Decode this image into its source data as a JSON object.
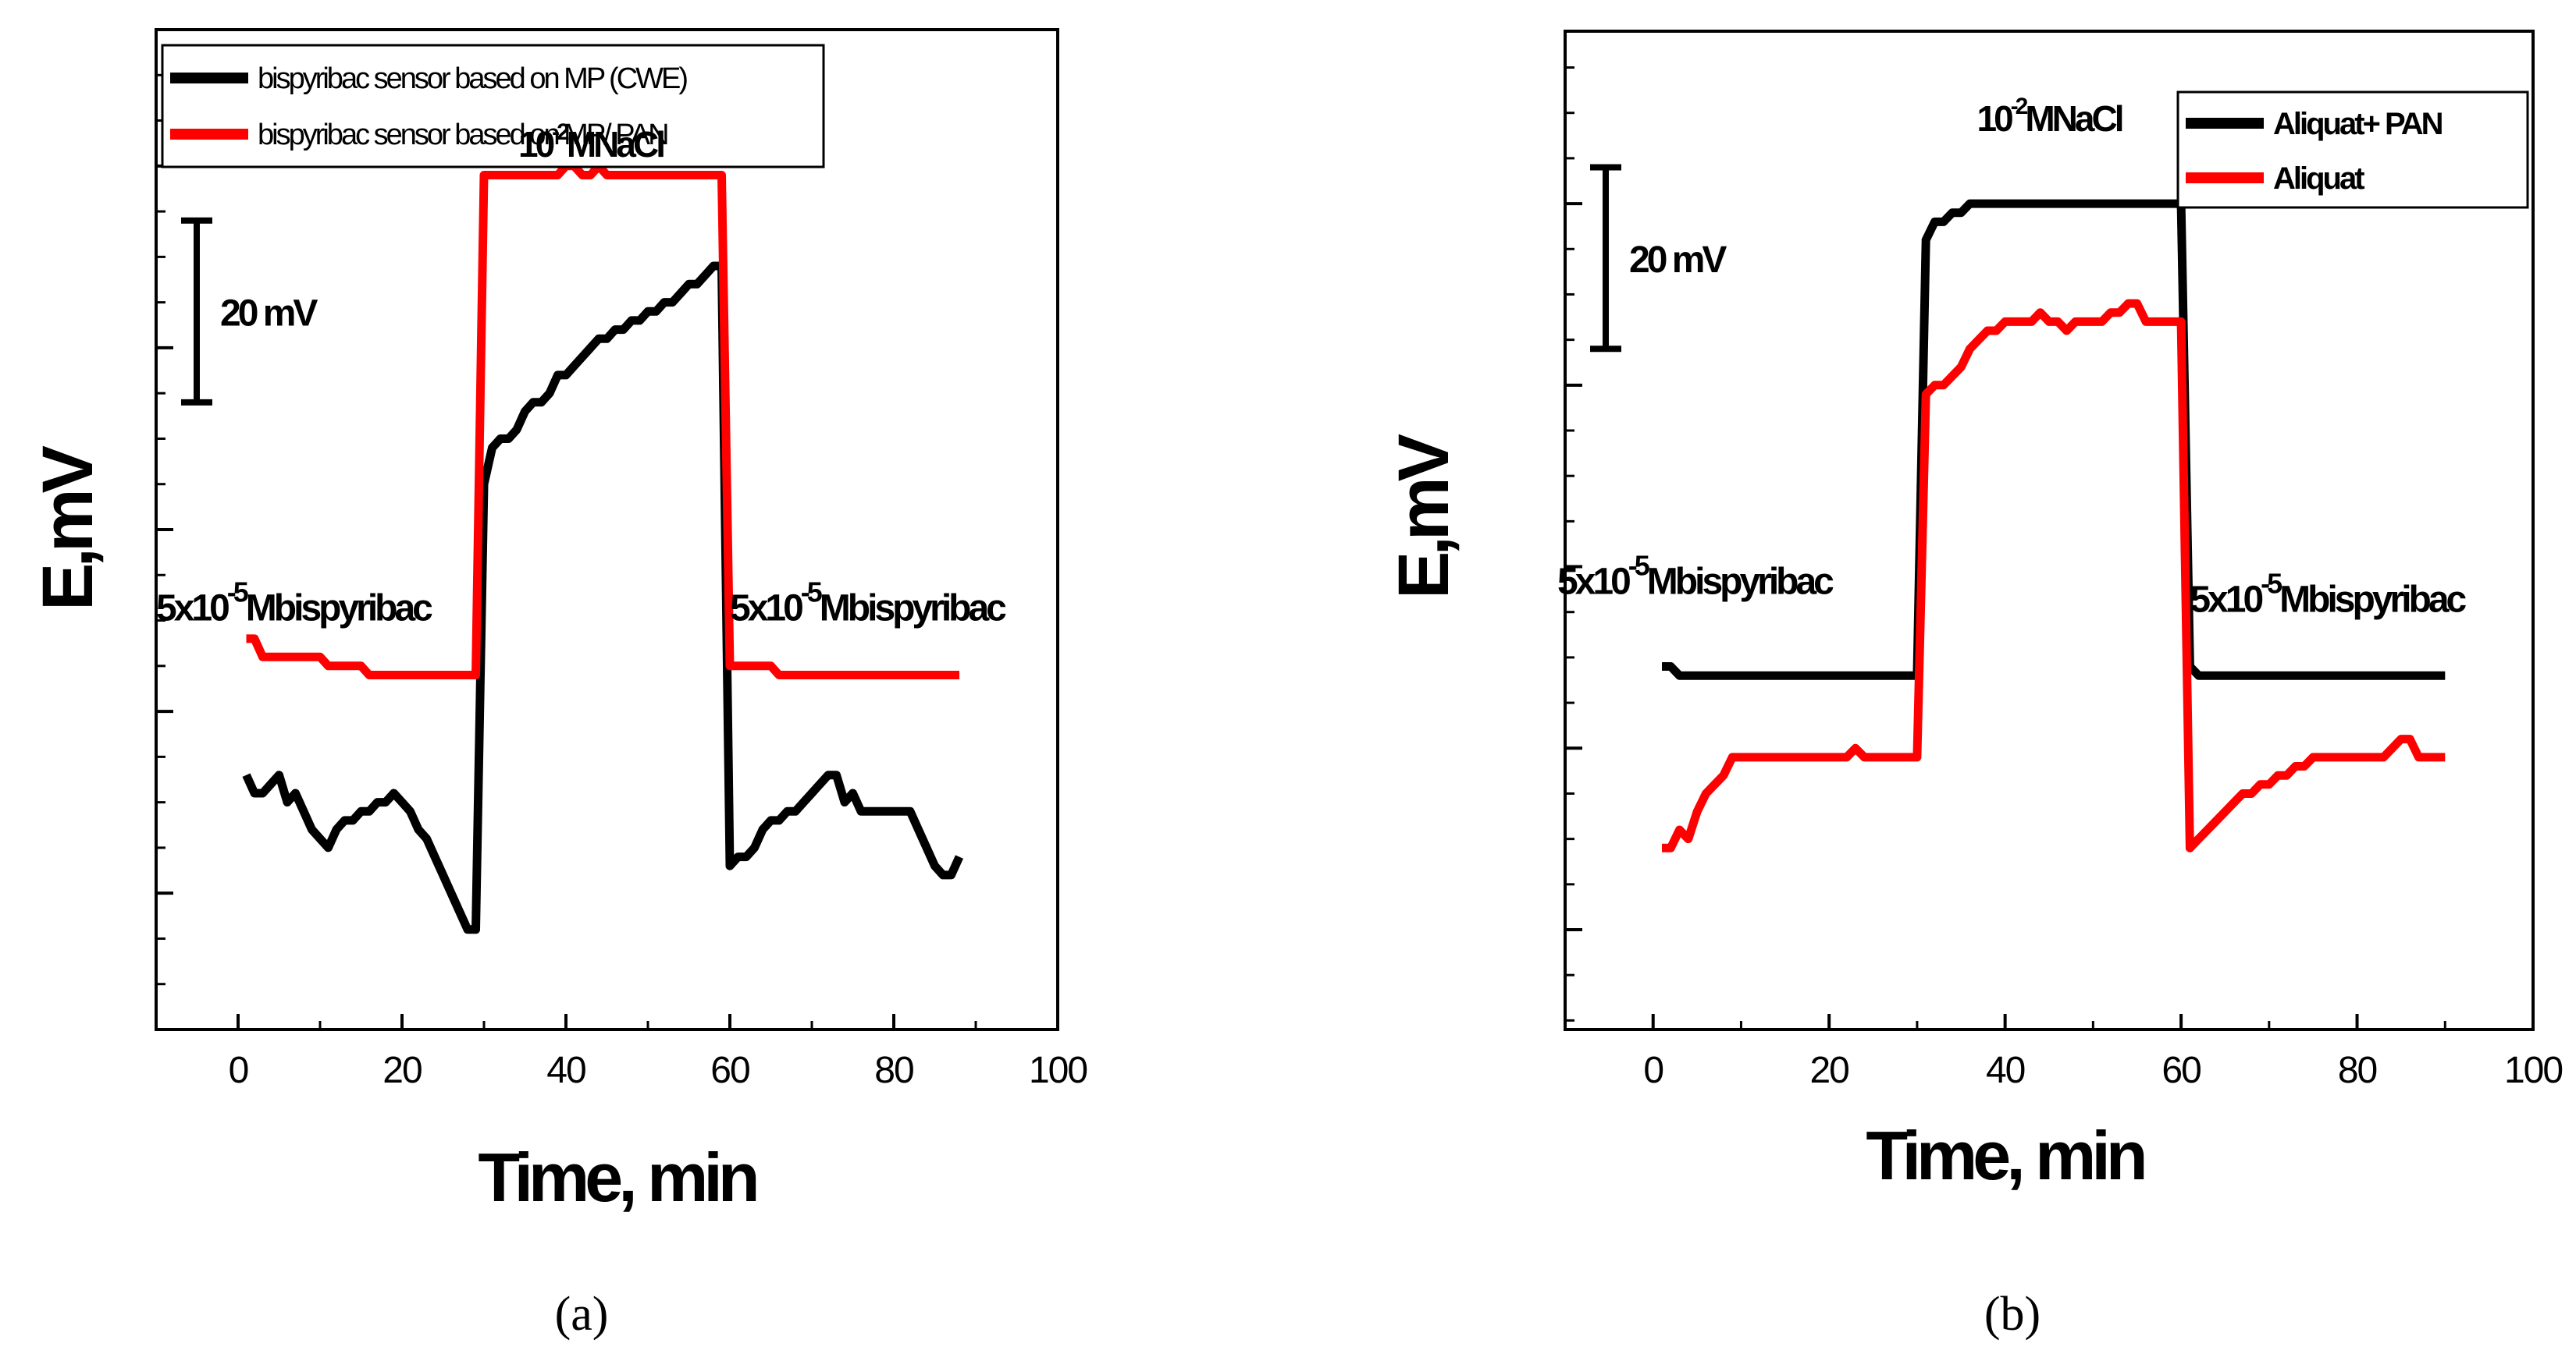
{
  "chart_data": [
    {
      "id": "a",
      "type": "line",
      "panel_label": "(a)",
      "xlabel": "Time, min",
      "ylabel": "E,mV",
      "xlim": [
        -10,
        100
      ],
      "xticks": [
        0,
        20,
        40,
        60,
        80,
        100
      ],
      "y_ticklabels_shown": false,
      "ylim": [
        -15,
        95
      ],
      "legend_position": "top-left",
      "scale_bar": {
        "label": "20 mV",
        "from": 54,
        "to": 74
      },
      "annotations": [
        {
          "id": "nacl",
          "base": "10",
          "sup": "-2",
          "tail": "MNaCl",
          "x": 43,
          "y": 81
        },
        {
          "id": "left",
          "base": "5x10",
          "sup": "-5",
          "tail": "Mbispyribac",
          "x": -10,
          "y": 30
        },
        {
          "id": "right",
          "base": "5x10",
          "sup": "-5",
          "tail": "Mbispyribac",
          "x": 60,
          "y": 30
        }
      ],
      "series": [
        {
          "name": "bispyribac sensor based on MP (CWE)",
          "color": "#000000",
          "x": [
            1,
            2,
            3,
            4,
            5,
            6,
            7,
            8,
            9,
            10,
            11,
            12,
            13,
            14,
            15,
            16,
            17,
            18,
            19,
            20,
            21,
            22,
            23,
            24,
            25,
            26,
            27,
            28,
            29,
            30,
            31,
            32,
            33,
            34,
            35,
            36,
            37,
            38,
            39,
            40,
            41,
            42,
            43,
            44,
            45,
            46,
            47,
            48,
            49,
            50,
            51,
            52,
            53,
            54,
            55,
            56,
            57,
            58,
            59,
            60,
            61,
            62,
            63,
            64,
            65,
            66,
            67,
            68,
            69,
            70,
            71,
            72,
            73,
            74,
            75,
            76,
            77,
            78,
            79,
            80,
            81,
            82,
            83,
            84,
            85,
            86,
            87,
            88
          ],
          "y": [
            13,
            11,
            11,
            12,
            13,
            10,
            11,
            9,
            7,
            6,
            5,
            7,
            8,
            8,
            9,
            9,
            10,
            10,
            11,
            10,
            9,
            7,
            6,
            4,
            2,
            0,
            -2,
            -4,
            -4,
            45,
            49,
            50,
            50,
            51,
            53,
            54,
            54,
            55,
            57,
            57,
            58,
            59,
            60,
            61,
            61,
            62,
            62,
            63,
            63,
            64,
            64,
            65,
            65,
            66,
            67,
            67,
            68,
            69,
            69,
            3,
            4,
            4,
            5,
            7,
            8,
            8,
            9,
            9,
            10,
            11,
            12,
            13,
            13,
            10,
            11,
            9,
            9,
            9,
            9,
            9,
            9,
            9,
            7,
            5,
            3,
            2,
            2,
            4
          ],
          "x_jumps": [
            [
              29,
              30
            ],
            [
              59,
              60
            ]
          ]
        },
        {
          "name": "bispyribac sensor based on MP/ PAN",
          "color": "#ff0000",
          "x": [
            1,
            2,
            3,
            4,
            5,
            6,
            7,
            8,
            9,
            10,
            11,
            12,
            13,
            14,
            15,
            16,
            17,
            18,
            19,
            20,
            21,
            22,
            23,
            24,
            25,
            26,
            27,
            28,
            29,
            30,
            31,
            32,
            33,
            34,
            35,
            36,
            37,
            38,
            39,
            40,
            41,
            42,
            43,
            44,
            45,
            46,
            47,
            48,
            49,
            50,
            51,
            52,
            53,
            54,
            55,
            56,
            57,
            58,
            59,
            60,
            61,
            62,
            63,
            64,
            65,
            66,
            67,
            68,
            69,
            70,
            71,
            72,
            73,
            74,
            75,
            76,
            77,
            78,
            79,
            80,
            81,
            82,
            83,
            84,
            85,
            86,
            87,
            88
          ],
          "y": [
            28,
            28,
            26,
            26,
            26,
            26,
            26,
            26,
            26,
            26,
            25,
            25,
            25,
            25,
            25,
            24,
            24,
            24,
            24,
            24,
            24,
            24,
            24,
            24,
            24,
            24,
            24,
            24,
            24,
            79,
            79,
            79,
            79,
            79,
            79,
            79,
            79,
            79,
            79,
            80,
            80,
            79,
            79,
            80,
            79,
            79,
            79,
            79,
            79,
            79,
            79,
            79,
            79,
            79,
            79,
            79,
            79,
            79,
            79,
            25,
            25,
            25,
            25,
            25,
            25,
            24,
            24,
            24,
            24,
            24,
            24,
            24,
            24,
            24,
            24,
            24,
            24,
            24,
            24,
            24,
            24,
            24,
            24,
            24,
            24,
            24,
            24,
            24
          ],
          "x_jumps": [
            [
              29,
              30
            ],
            [
              59,
              60
            ]
          ]
        }
      ]
    },
    {
      "id": "b",
      "type": "line",
      "panel_label": "(b)",
      "xlabel": "Time, min",
      "ylabel": "E,mV",
      "xlim": [
        -10,
        100
      ],
      "xticks": [
        0,
        20,
        40,
        60,
        80,
        100
      ],
      "y_ticklabels_shown": false,
      "ylim": [
        -11,
        99
      ],
      "legend_position": "top-right",
      "scale_bar": {
        "label": "20 mV",
        "from": 64,
        "to": 84
      },
      "annotations": [
        {
          "id": "nacl",
          "base": "10",
          "sup": "-2",
          "tail": "MNaCl",
          "x": 45,
          "y": 88
        },
        {
          "id": "left",
          "base": "5x10",
          "sup": "-5",
          "tail": "Mbispyribac",
          "x": -10,
          "y": 37
        },
        {
          "id": "right",
          "base": "5x10",
          "sup": "-5",
          "tail": "Mbispyribac",
          "x": 61,
          "y": 35
        }
      ],
      "series": [
        {
          "name": "Aliquat+ PAN",
          "color": "#000000",
          "x": [
            1,
            2,
            3,
            4,
            5,
            10,
            20,
            30,
            31,
            32,
            33,
            34,
            35,
            36,
            40,
            50,
            60,
            61,
            62,
            63,
            64,
            70,
            80,
            90
          ],
          "y": [
            29,
            29,
            28,
            28,
            28,
            28,
            28,
            28,
            76,
            78,
            78,
            79,
            79,
            80,
            80,
            80,
            80,
            29,
            28,
            28,
            28,
            28,
            28,
            28
          ],
          "x_jumps": [
            [
              30,
              31
            ],
            [
              60,
              61
            ]
          ]
        },
        {
          "name": "Aliquat",
          "color": "#ff0000",
          "x": [
            1,
            2,
            3,
            4,
            5,
            6,
            7,
            8,
            9,
            10,
            11,
            12,
            13,
            14,
            15,
            16,
            17,
            18,
            19,
            20,
            21,
            22,
            23,
            24,
            25,
            26,
            27,
            28,
            29,
            30,
            31,
            32,
            33,
            34,
            35,
            36,
            37,
            38,
            39,
            40,
            41,
            42,
            43,
            44,
            45,
            46,
            47,
            48,
            49,
            50,
            51,
            52,
            53,
            54,
            55,
            56,
            57,
            58,
            59,
            60,
            61,
            62,
            63,
            64,
            65,
            66,
            67,
            68,
            69,
            70,
            71,
            72,
            73,
            74,
            75,
            76,
            77,
            78,
            79,
            80,
            81,
            82,
            83,
            84,
            85,
            86,
            87,
            88,
            89,
            90
          ],
          "y": [
            9,
            9,
            11,
            10,
            13,
            15,
            16,
            17,
            19,
            19,
            19,
            19,
            19,
            19,
            19,
            19,
            19,
            19,
            19,
            19,
            19,
            19,
            20,
            19,
            19,
            19,
            19,
            19,
            19,
            19,
            59,
            60,
            60,
            61,
            62,
            64,
            65,
            66,
            66,
            67,
            67,
            67,
            67,
            68,
            67,
            67,
            66,
            67,
            67,
            67,
            67,
            68,
            68,
            69,
            69,
            67,
            67,
            67,
            67,
            67,
            9,
            10,
            11,
            12,
            13,
            14,
            15,
            15,
            16,
            16,
            17,
            17,
            18,
            18,
            19,
            19,
            19,
            19,
            19,
            19,
            19,
            19,
            19,
            20,
            21,
            21,
            19,
            19,
            19,
            19
          ],
          "x_jumps": [
            [
              30,
              31
            ],
            [
              60,
              61
            ]
          ]
        }
      ]
    }
  ]
}
